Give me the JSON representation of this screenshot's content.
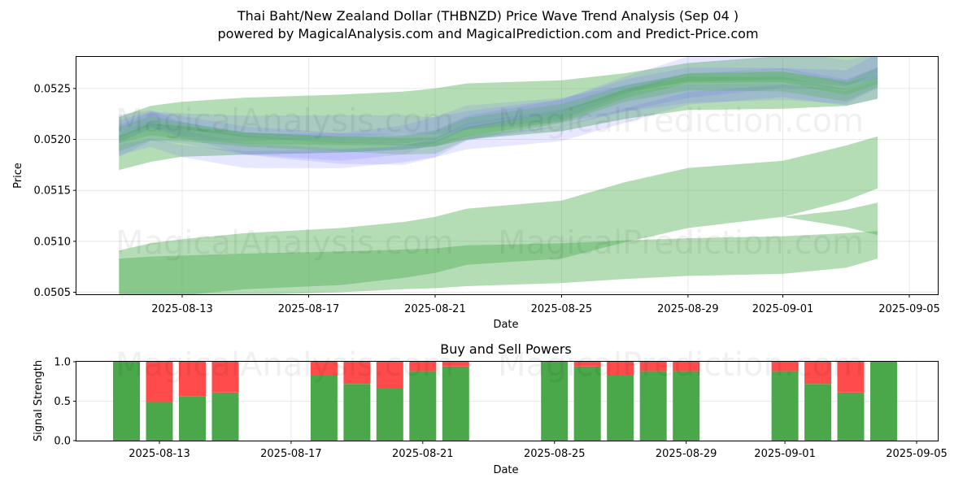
{
  "title_line1": "Thai Baht/New Zealand Dollar (THBNZD) Price Wave Trend Analysis (Sep 04 )",
  "title_line2": "powered by MagicalAnalysis.com and MagicalPrediction.com and Predict-Price.com",
  "watermarks": [
    "MagicalAnalysis.com",
    "MagicalPrediction.com"
  ],
  "colors": {
    "green_band": "#4caf50",
    "blue_band": "#6a6aff",
    "buy": "#4aa84a",
    "sell": "#ff4b4b"
  },
  "chart_data": [
    {
      "type": "area",
      "title": "",
      "xlabel": "Date",
      "ylabel": "Price",
      "x_ticks": [
        "2025-08-13",
        "2025-08-17",
        "2025-08-21",
        "2025-08-25",
        "2025-08-29",
        "2025-09-01",
        "2025-09-05"
      ],
      "y_ticks": [
        "0.0505",
        "0.0510",
        "0.0515",
        "0.0520",
        "0.0525"
      ],
      "ylim": [
        0.05048,
        0.05281
      ],
      "grid": true,
      "x_dates": [
        "2025-08-11",
        "2025-08-12",
        "2025-08-13",
        "2025-08-15",
        "2025-08-18",
        "2025-08-20",
        "2025-08-21",
        "2025-08-22",
        "2025-08-25",
        "2025-08-27",
        "2025-08-29",
        "2025-09-01",
        "2025-09-03",
        "2025-09-04"
      ],
      "green_bands": [
        {
          "upper": [
            0.05222,
            0.05233,
            0.05237,
            0.05241,
            0.05244,
            0.05247,
            0.0525,
            0.05255,
            0.05258,
            0.05265,
            0.05275,
            0.05282,
            0.05283,
            0.05283
          ],
          "lower": [
            0.0517,
            0.05178,
            0.05183,
            0.05185,
            0.05187,
            0.0519,
            0.05193,
            0.052,
            0.05208,
            0.0522,
            0.05229,
            0.0523,
            0.05233,
            0.0524
          ]
        },
        {
          "upper": [
            0.05091,
            0.05098,
            0.05102,
            0.05108,
            0.05113,
            0.05119,
            0.05124,
            0.05132,
            0.0514,
            0.05158,
            0.05172,
            0.05179,
            0.05194,
            0.05203
          ],
          "lower": [
            0.05083,
            0.05086,
            0.05089,
            0.05091,
            0.05094,
            0.05097,
            0.05099,
            0.05101,
            0.05104,
            0.05112,
            0.05118,
            0.05124,
            0.0514,
            0.05152
          ]
        },
        {
          "upper": [
            0.05083,
            0.05086,
            0.05089,
            0.05091,
            0.05094,
            0.05097,
            0.05099,
            0.05101,
            0.05104,
            0.05112,
            0.05118,
            0.05124,
            0.05131,
            0.05138
          ],
          "lower": [
            0.0504,
            0.05044,
            0.05047,
            0.05053,
            0.05057,
            0.05064,
            0.05069,
            0.05077,
            0.05083,
            0.05099,
            0.05113,
            0.05124,
            0.05114,
            0.05106
          ]
        },
        {
          "upper": [
            0.05083,
            0.05085,
            0.05086,
            0.05088,
            0.0509,
            0.05092,
            0.05093,
            0.05096,
            0.05098,
            0.05101,
            0.05103,
            0.05105,
            0.05108,
            0.0511
          ],
          "lower": [
            0.0504,
            0.05043,
            0.05044,
            0.05047,
            0.0505,
            0.05053,
            0.05054,
            0.05056,
            0.05059,
            0.05063,
            0.05066,
            0.05068,
            0.05074,
            0.05083
          ]
        }
      ],
      "wave_center": [
        0.05202,
        0.05212,
        0.05207,
        0.05199,
        0.05196,
        0.05197,
        0.052,
        0.05211,
        0.05224,
        0.05243,
        0.05257,
        0.0526,
        0.05251,
        0.05262
      ],
      "wave_copies": [
        {
          "offset": 6e-05,
          "spread": 0.0001,
          "color": "blue"
        },
        {
          "offset": -8e-05,
          "spread": 0.00014,
          "color": "blue"
        },
        {
          "offset": 3e-05,
          "spread": 0.0002,
          "color": "blue"
        },
        {
          "offset": -0.00015,
          "spread": 0.00012,
          "color": "blue"
        },
        {
          "offset": 0.00012,
          "spread": 0.00016,
          "color": "blue"
        },
        {
          "offset": 0.0,
          "spread": 8e-05,
          "color": "green"
        },
        {
          "offset": -4e-05,
          "spread": 0.0001,
          "color": "green"
        },
        {
          "offset": 5e-05,
          "spread": 6e-05,
          "color": "green"
        }
      ]
    },
    {
      "type": "bar",
      "title": "Buy and Sell Powers",
      "xlabel": "Date",
      "ylabel": "Signal Strength",
      "x_ticks": [
        "2025-08-13",
        "2025-08-17",
        "2025-08-21",
        "2025-08-25",
        "2025-08-29",
        "2025-09-01",
        "2025-09-05"
      ],
      "y_ticks": [
        "0.0",
        "0.5",
        "1.0"
      ],
      "ylim": [
        0,
        1
      ],
      "categories": [
        "2025-08-12",
        "2025-08-13",
        "2025-08-14",
        "2025-08-15",
        "2025-08-18",
        "2025-08-19",
        "2025-08-20",
        "2025-08-21",
        "2025-08-22",
        "2025-08-25",
        "2025-08-26",
        "2025-08-27",
        "2025-08-28",
        "2025-08-29",
        "2025-09-01",
        "2025-09-02",
        "2025-09-03",
        "2025-09-04"
      ],
      "series": [
        {
          "name": "Buy",
          "values": [
            1.0,
            0.49,
            0.56,
            0.61,
            0.83,
            0.72,
            0.66,
            0.88,
            0.94,
            1.0,
            0.94,
            0.83,
            0.88,
            0.88,
            0.88,
            0.72,
            0.61,
            1.0
          ]
        },
        {
          "name": "Sell",
          "values": [
            0.0,
            0.51,
            0.44,
            0.39,
            0.17,
            0.28,
            0.34,
            0.12,
            0.06,
            0.0,
            0.06,
            0.17,
            0.12,
            0.12,
            0.12,
            0.28,
            0.39,
            0.0
          ]
        }
      ]
    }
  ]
}
